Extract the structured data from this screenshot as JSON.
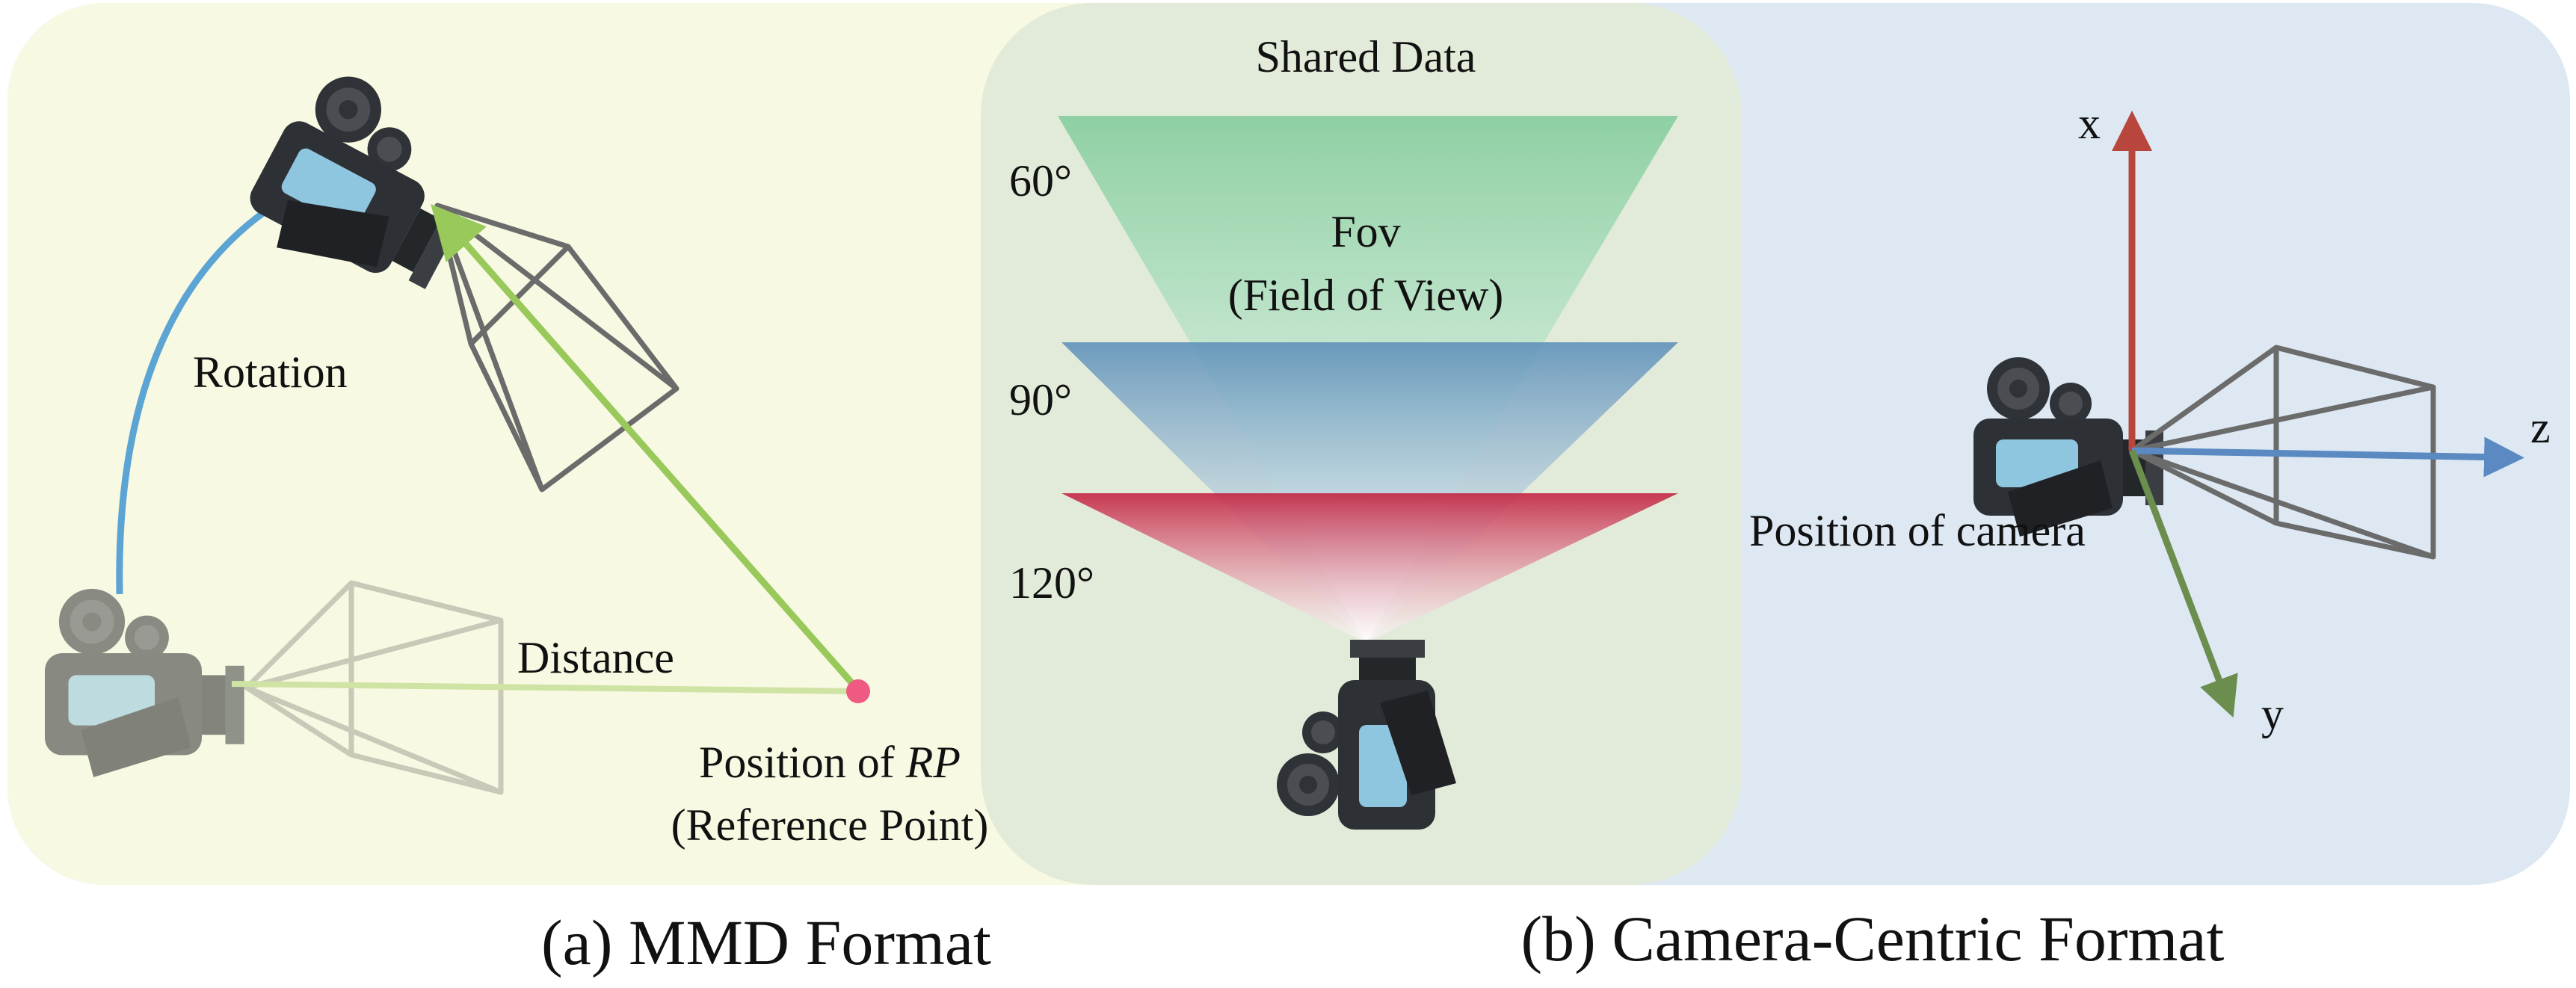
{
  "panel_a": {
    "rotation_label": "Rotation",
    "distance_label": "Distance",
    "rp_label_prefix": "Position of ",
    "rp_label_italic": "RP",
    "rp_label_line2": "(Reference Point)",
    "caption": "(a) MMD Format"
  },
  "shared": {
    "title": "Shared Data",
    "fov_label": "Fov",
    "fov_label_line2": "(Field of View)",
    "angles": [
      "60°",
      "90°",
      "120°"
    ]
  },
  "panel_b": {
    "axis_x": "x",
    "axis_y": "y",
    "axis_z": "z",
    "camera_label": "Position of camera",
    "caption": "(b) Camera-Centric Format"
  },
  "colors": {
    "panel_a_bg": "#f8f9e2",
    "panel_b_bg": "#dde8f2",
    "shared_bg": "#e2ebd9",
    "rotation_arrow": "#5ba4d4",
    "distance_arrow": "#98c95a",
    "rp_point": "#ee5a82",
    "fov_60": "#8fd0a4",
    "fov_90": "#5c8fb9",
    "fov_120": "#c42845",
    "axis_x": "#b8463d",
    "axis_y": "#6b8d4e",
    "axis_z": "#5b8ac3"
  }
}
